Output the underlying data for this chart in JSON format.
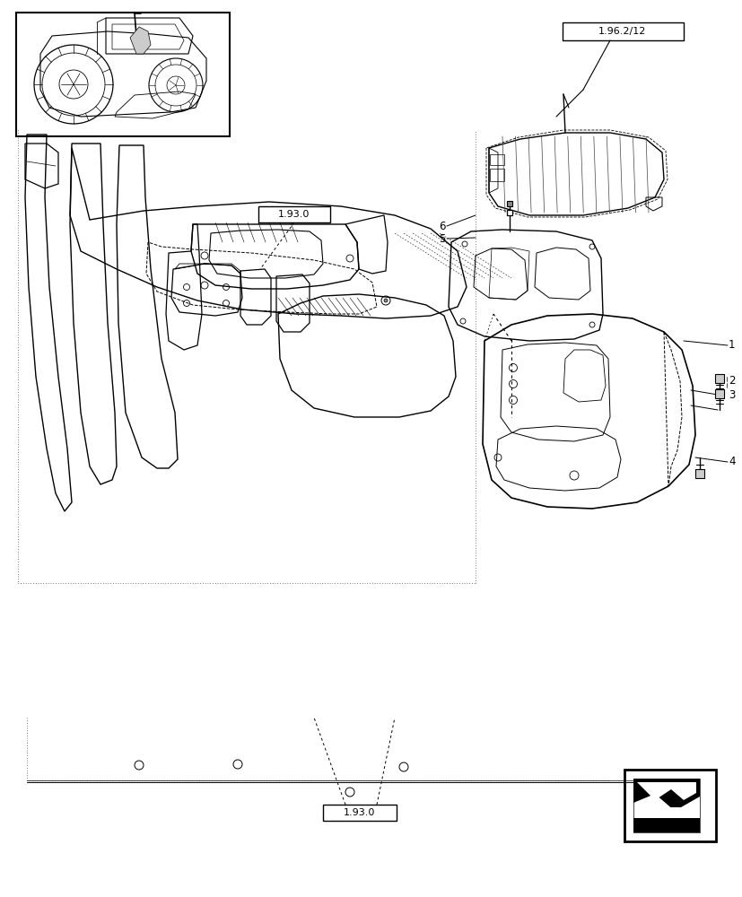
{
  "bg_color": "#ffffff",
  "lc": "#000000",
  "fig_width": 8.28,
  "fig_height": 10.0,
  "dpi": 100,
  "label_196_2_12": "1.96.2/12",
  "label_193_0": "1.93.0"
}
